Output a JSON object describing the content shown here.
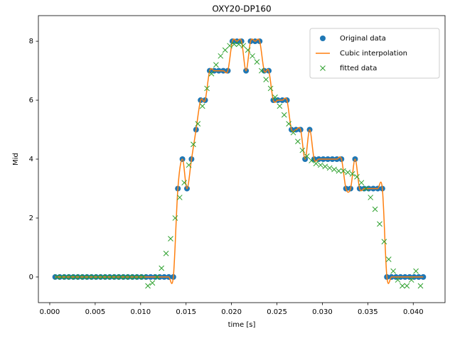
{
  "chart_data": {
    "type": "line",
    "title": "OXY20-DP160",
    "x_label": "time [s]",
    "y_label": "Mid",
    "xlim": [
      -0.00125,
      0.0435
    ],
    "ylim": [
      -0.87,
      8.87
    ],
    "xticks": [
      {
        "value": 0,
        "label": "0.000"
      },
      {
        "value": 0.005,
        "label": "0.005"
      },
      {
        "value": 0.01,
        "label": "0.010"
      },
      {
        "value": 0.015,
        "label": "0.015"
      },
      {
        "value": 0.02,
        "label": "0.020"
      },
      {
        "value": 0.025,
        "label": "0.025"
      },
      {
        "value": 0.03,
        "label": "0.030"
      },
      {
        "value": 0.035,
        "label": "0.035"
      },
      {
        "value": 0.04,
        "label": "0.040"
      }
    ],
    "yticks": [
      0,
      2,
      4,
      6,
      8
    ],
    "grid": false,
    "legend": "upper right",
    "series": [
      {
        "name": "Original data",
        "color": "#1f77b4",
        "marker": "circle",
        "line": "none",
        "x": [
          0.0006,
          0.0011,
          0.0016,
          0.0021,
          0.0026,
          0.0031,
          0.0036,
          0.0041,
          0.0046,
          0.0051,
          0.0056,
          0.0061,
          0.0066,
          0.0071,
          0.0076,
          0.0081,
          0.0086,
          0.0091,
          0.0096,
          0.0101,
          0.0106,
          0.0111,
          0.0116,
          0.0121,
          0.0126,
          0.0131,
          0.0136,
          0.0141,
          0.0146,
          0.0151,
          0.0156,
          0.0161,
          0.0166,
          0.0171,
          0.0176,
          0.0181,
          0.0186,
          0.0191,
          0.0196,
          0.0201,
          0.0206,
          0.0211,
          0.0216,
          0.0221,
          0.0226,
          0.0231,
          0.0236,
          0.0241,
          0.0246,
          0.0251,
          0.0256,
          0.0261,
          0.0266,
          0.0271,
          0.0276,
          0.0281,
          0.0286,
          0.0291,
          0.0296,
          0.0301,
          0.0306,
          0.0311,
          0.0316,
          0.0321,
          0.0326,
          0.0331,
          0.0336,
          0.0341,
          0.0346,
          0.0351,
          0.0356,
          0.0361,
          0.0366,
          0.0371,
          0.0376,
          0.0381,
          0.0386,
          0.0391,
          0.0396,
          0.0401,
          0.0406,
          0.0411
        ],
        "values": [
          0,
          0,
          0,
          0,
          0,
          0,
          0,
          0,
          0,
          0,
          0,
          0,
          0,
          0,
          0,
          0,
          0,
          0,
          0,
          0,
          0,
          0,
          0,
          0,
          0,
          0,
          0,
          3,
          4,
          3,
          4,
          5,
          6,
          6,
          7,
          7,
          7,
          7,
          7,
          8,
          8,
          8,
          7,
          8,
          8,
          8,
          7,
          7,
          6,
          6,
          6,
          6,
          5,
          5,
          5,
          4,
          5,
          4,
          4,
          4,
          4,
          4,
          4,
          4,
          3,
          3,
          4,
          3,
          3,
          3,
          3,
          3,
          3,
          0,
          0,
          0,
          0,
          0,
          0,
          0,
          0,
          0
        ]
      },
      {
        "name": "Cubic interpolation",
        "color": "#ff7f0e",
        "marker": "none",
        "line": "cubic",
        "x": [
          0.0006,
          0.0011,
          0.0016,
          0.0021,
          0.0026,
          0.0031,
          0.0036,
          0.0041,
          0.0046,
          0.0051,
          0.0056,
          0.0061,
          0.0066,
          0.0071,
          0.0076,
          0.0081,
          0.0086,
          0.0091,
          0.0096,
          0.0101,
          0.0106,
          0.0111,
          0.0116,
          0.0121,
          0.0126,
          0.0131,
          0.0136,
          0.0141,
          0.0146,
          0.0151,
          0.0156,
          0.0161,
          0.0166,
          0.0171,
          0.0176,
          0.0181,
          0.0186,
          0.0191,
          0.0196,
          0.0201,
          0.0206,
          0.0211,
          0.0216,
          0.0221,
          0.0226,
          0.0231,
          0.0236,
          0.0241,
          0.0246,
          0.0251,
          0.0256,
          0.0261,
          0.0266,
          0.0271,
          0.0276,
          0.0281,
          0.0286,
          0.0291,
          0.0296,
          0.0301,
          0.0306,
          0.0311,
          0.0316,
          0.0321,
          0.0326,
          0.0331,
          0.0336,
          0.0341,
          0.0346,
          0.0351,
          0.0356,
          0.0361,
          0.0366,
          0.0371,
          0.0376,
          0.0381,
          0.0386,
          0.0391,
          0.0396,
          0.0401,
          0.0406,
          0.0411
        ],
        "values": [
          0,
          0,
          0,
          0,
          0,
          0,
          0,
          0,
          0,
          0,
          0,
          0,
          0,
          0,
          0,
          0,
          0,
          0,
          0,
          0,
          0,
          0,
          0,
          0,
          0,
          0,
          0,
          3,
          4,
          3,
          4,
          5,
          6,
          6,
          7,
          7,
          7,
          7,
          7,
          8,
          8,
          8,
          7,
          8,
          8,
          8,
          7,
          7,
          6,
          6,
          6,
          6,
          5,
          5,
          5,
          4,
          5,
          4,
          4,
          4,
          4,
          4,
          4,
          4,
          3,
          3,
          4,
          3,
          3,
          3,
          3,
          3,
          3,
          0,
          0,
          0,
          0,
          0,
          0,
          0,
          0,
          0
        ]
      },
      {
        "name": "fitted data",
        "color": "#2ca02c",
        "marker": "x",
        "line": "none",
        "x": [
          0.0008,
          0.0013,
          0.0018,
          0.0023,
          0.0028,
          0.0033,
          0.0038,
          0.0043,
          0.0048,
          0.0053,
          0.0058,
          0.0063,
          0.0068,
          0.0073,
          0.0078,
          0.0083,
          0.0088,
          0.0093,
          0.0098,
          0.0103,
          0.0108,
          0.0113,
          0.0118,
          0.0123,
          0.0128,
          0.0133,
          0.0138,
          0.0143,
          0.0148,
          0.0153,
          0.0158,
          0.0163,
          0.0168,
          0.0173,
          0.0178,
          0.0183,
          0.0188,
          0.0193,
          0.0198,
          0.0203,
          0.0208,
          0.0213,
          0.0218,
          0.0223,
          0.0228,
          0.0233,
          0.0238,
          0.0243,
          0.0248,
          0.0253,
          0.0258,
          0.0263,
          0.0268,
          0.0273,
          0.0278,
          0.0283,
          0.0288,
          0.0293,
          0.0298,
          0.0303,
          0.0308,
          0.0313,
          0.0318,
          0.0323,
          0.0328,
          0.0333,
          0.0338,
          0.0343,
          0.0348,
          0.0353,
          0.0358,
          0.0363,
          0.0368,
          0.0373,
          0.0378,
          0.0383,
          0.0388,
          0.0393,
          0.0398,
          0.0403,
          0.0408
        ],
        "values": [
          0,
          0,
          0,
          0,
          0,
          0,
          0,
          0,
          0,
          0,
          0,
          0,
          0,
          0,
          0,
          0,
          0,
          0,
          0,
          0,
          -0.3,
          -0.2,
          0,
          0.3,
          0.8,
          1.3,
          2.0,
          2.7,
          3.2,
          3.8,
          4.5,
          5.2,
          5.8,
          6.4,
          6.9,
          7.2,
          7.5,
          7.7,
          7.85,
          7.9,
          7.9,
          7.85,
          7.7,
          7.5,
          7.3,
          7.0,
          6.7,
          6.4,
          6.1,
          5.8,
          5.5,
          5.2,
          4.9,
          4.6,
          4.3,
          4.1,
          3.95,
          3.85,
          3.8,
          3.75,
          3.7,
          3.65,
          3.6,
          3.6,
          3.55,
          3.5,
          3.4,
          3.2,
          3.0,
          2.7,
          2.3,
          1.8,
          1.2,
          0.6,
          0.2,
          -0.1,
          -0.3,
          -0.3,
          -0.1,
          0.2,
          -0.3
        ]
      }
    ]
  }
}
